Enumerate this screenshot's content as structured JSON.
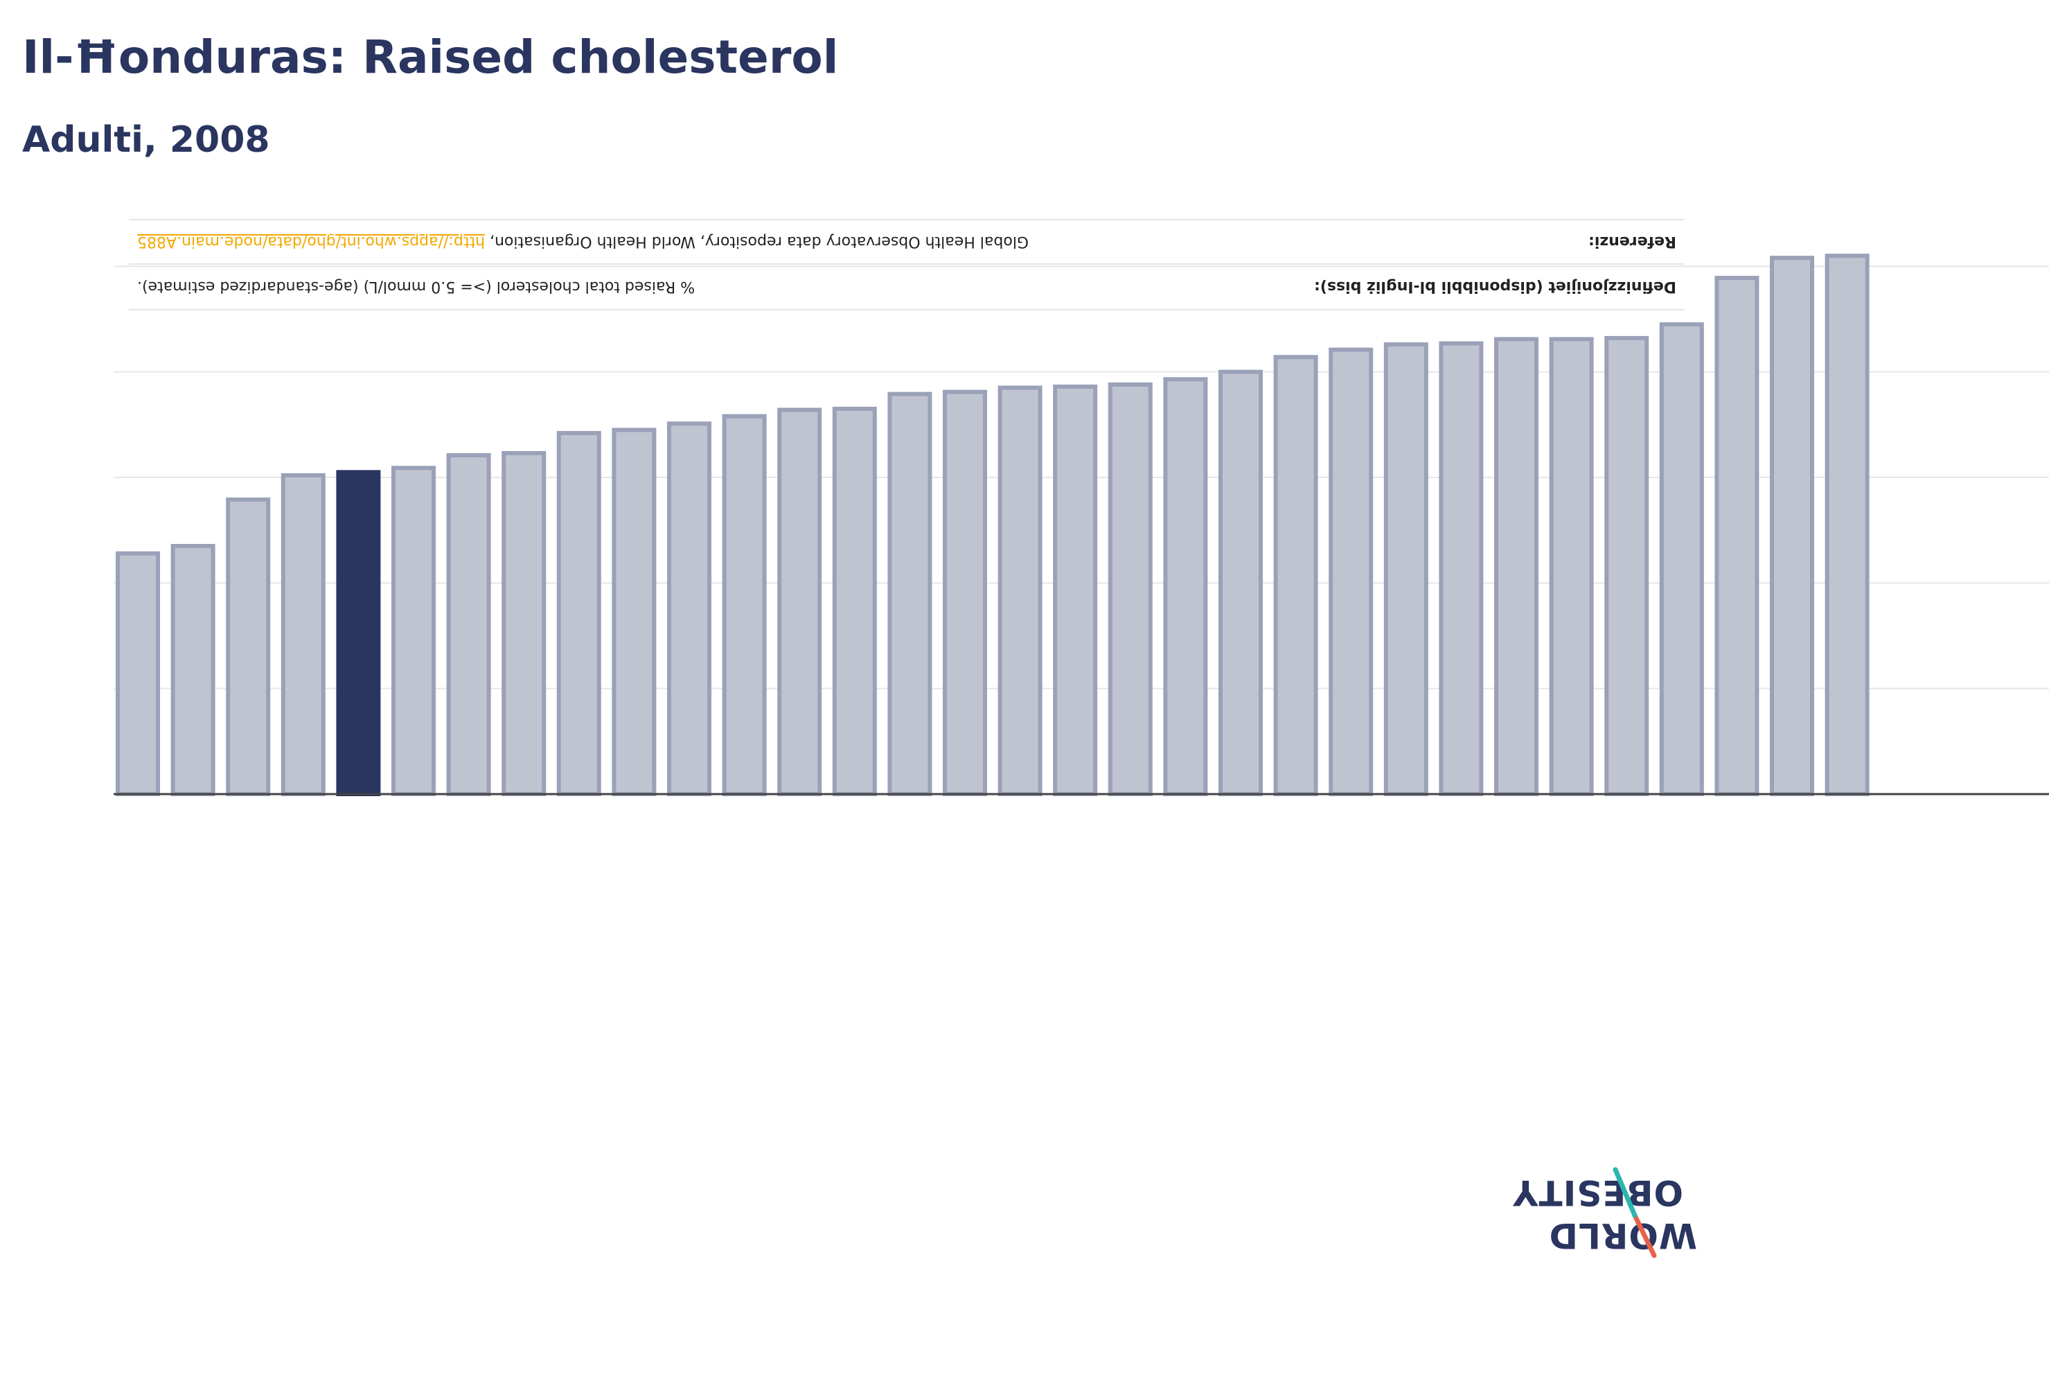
{
  "header": {
    "title": "Il-Ħonduras: Raised cholesterol",
    "subtitle": "Adulti, 2008"
  },
  "info": {
    "definition_label": "Definizzjonijiet (disponibbli bl-Ingliż biss):",
    "definition_text": "% Raised total cholesterol (>= 5.0 mmol/L) (age-standardized estimate).",
    "reference_label": "Referenzi:",
    "reference_text": "Global Health Observatory data repository, World Health Organisation,",
    "reference_link": "http://apps.who.int/gho/data/node.main.A885"
  },
  "logo": {
    "line1": "WORLD",
    "line2": "OBESITY"
  },
  "colors": {
    "highlight": "#2a3560",
    "bar_fill": "#c0c4d0",
    "bar_stroke": "#9aa1b8",
    "grid": "#e6e6e6",
    "axis": "#444444",
    "logo_slash_red": "#e8624a",
    "logo_slash_teal": "#2bb5b0"
  },
  "chart_data": {
    "type": "bar",
    "highlight_index": 4,
    "values": [
      22.8,
      23.5,
      27.9,
      30.2,
      30.5,
      30.9,
      32.1,
      32.3,
      34.2,
      34.5,
      35.1,
      35.8,
      36.4,
      36.5,
      37.9,
      38.1,
      38.5,
      38.6,
      38.8,
      39.3,
      40.0,
      41.4,
      42.1,
      42.6,
      42.7,
      43.1,
      43.1,
      43.2,
      44.5,
      48.9,
      50.8,
      51.0
    ],
    "ylim": [
      0,
      60
    ],
    "grid": true,
    "gridlines": [
      0,
      10,
      20,
      30,
      40,
      50
    ]
  }
}
